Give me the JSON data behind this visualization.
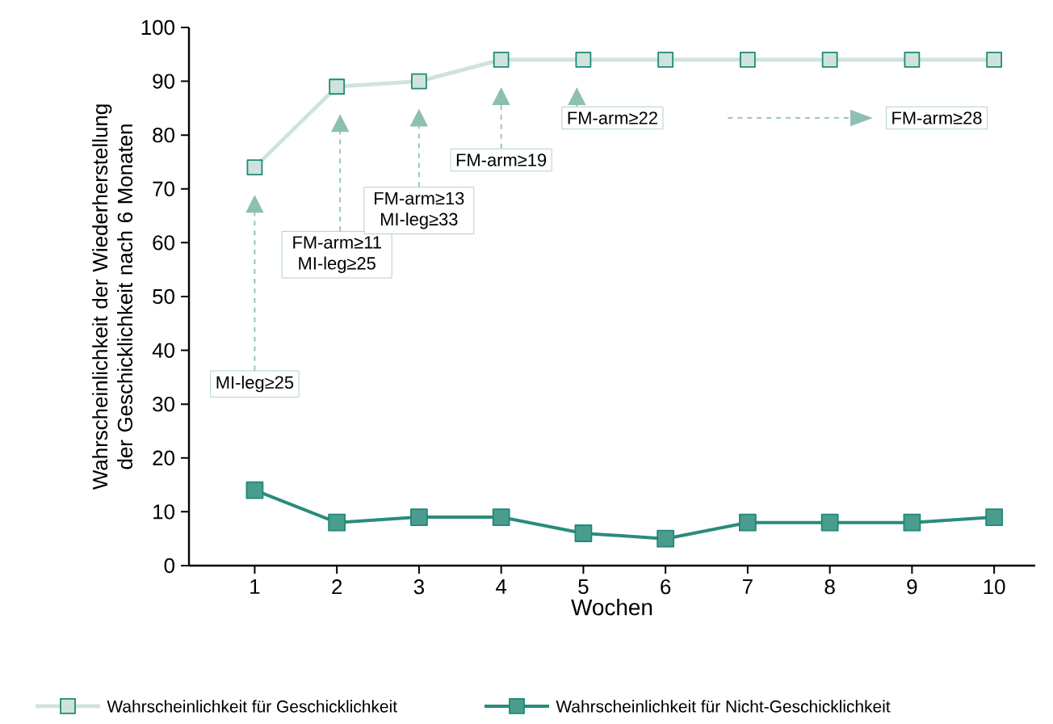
{
  "chart_data": {
    "type": "line",
    "xlabel": "Wochen",
    "ylabel": "Wahrscheinlichkeit der Wiederherstellung der Geschicklichkeit nach 6 Monaten",
    "x": [
      1,
      2,
      3,
      4,
      5,
      6,
      7,
      8,
      9,
      10
    ],
    "series": [
      {
        "name": "Wahrscheinlichkeit für Geschicklichkeit",
        "color": "#cfe3dc",
        "values": [
          74,
          89,
          90,
          94,
          94,
          94,
          94,
          94,
          94,
          94
        ]
      },
      {
        "name": "Wahrscheinlichkeit für Nicht-Geschicklichkeit",
        "color": "#2a8c7a",
        "values": [
          14,
          8,
          9,
          9,
          6,
          5,
          8,
          8,
          8,
          9
        ]
      }
    ],
    "xlim": [
      0.2,
      10.5
    ],
    "ylim": [
      0,
      100
    ],
    "xticks": [
      1,
      2,
      3,
      4,
      5,
      6,
      7,
      8,
      9,
      10
    ],
    "yticks": [
      0,
      10,
      20,
      30,
      40,
      50,
      60,
      70,
      80,
      90,
      100
    ],
    "annotations": [
      "MI-leg≥25",
      "FM-arm≥11 MI-leg≥25",
      "FM-arm≥13 MI-leg≥33",
      "FM-arm≥19",
      "FM-arm≥22",
      "FM-arm≥28"
    ],
    "marker": "square",
    "line_style": "solid",
    "legend": "bottom",
    "grid": false
  }
}
